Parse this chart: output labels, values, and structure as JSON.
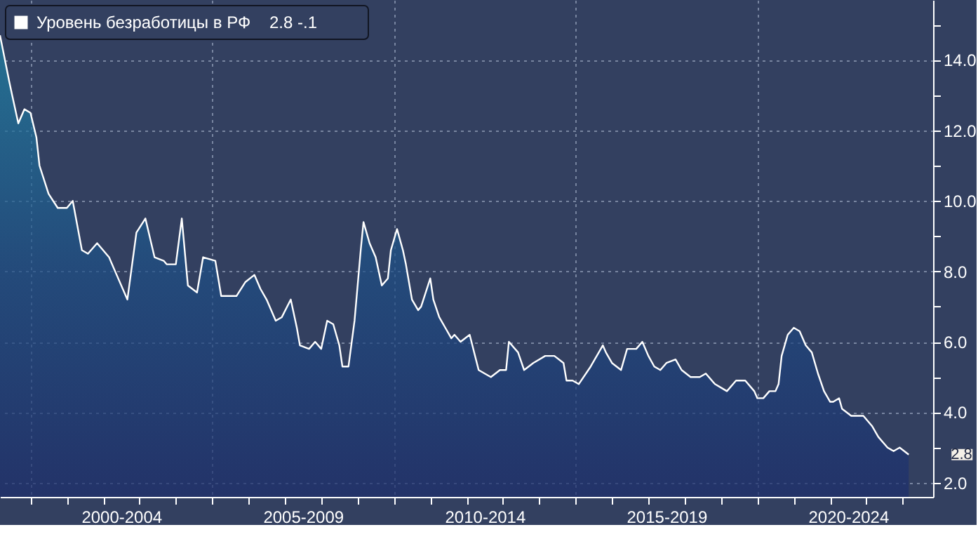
{
  "chart_data": {
    "type": "area",
    "x": [
      "1999-03",
      "1999-06",
      "1999-07",
      "1999-09",
      "1999-11",
      "2000-01",
      "2000-03",
      "2000-04",
      "2000-07",
      "2000-10",
      "2001-01",
      "2001-03",
      "2001-06",
      "2001-08",
      "2001-11",
      "2002-03",
      "2002-05",
      "2002-09",
      "2002-12",
      "2003-03",
      "2003-06",
      "2003-09",
      "2003-10",
      "2004-01",
      "2004-03",
      "2004-05",
      "2004-08",
      "2004-10",
      "2005-02",
      "2005-04",
      "2005-06",
      "2005-09",
      "2005-12",
      "2006-03",
      "2006-05",
      "2006-07",
      "2006-10",
      "2006-12",
      "2007-03",
      "2007-05",
      "2007-06",
      "2007-09",
      "2007-11",
      "2008-01",
      "2008-03",
      "2008-05",
      "2008-07",
      "2008-08",
      "2008-10",
      "2008-12",
      "2009-02",
      "2009-03",
      "2009-05",
      "2009-07",
      "2009-09",
      "2009-11",
      "2009-12",
      "2010-02",
      "2010-04",
      "2010-05",
      "2010-07",
      "2010-09",
      "2010-10",
      "2011-01",
      "2011-02",
      "2011-04",
      "2011-06",
      "2011-08",
      "2011-09",
      "2011-11",
      "2012-02",
      "2012-05",
      "2012-07",
      "2012-09",
      "2012-12",
      "2013-02",
      "2013-03",
      "2013-06",
      "2013-08",
      "2013-11",
      "2014-03",
      "2014-06",
      "2014-09",
      "2014-10",
      "2014-12",
      "2015-02",
      "2015-06",
      "2015-10",
      "2015-11",
      "2016-01",
      "2016-04",
      "2016-06",
      "2016-09",
      "2016-11",
      "2017-01",
      "2017-03",
      "2017-05",
      "2017-07",
      "2017-10",
      "2017-12",
      "2018-03",
      "2018-06",
      "2018-08",
      "2018-11",
      "2019-01",
      "2019-03",
      "2019-06",
      "2019-09",
      "2019-12",
      "2020-01",
      "2020-03",
      "2020-05",
      "2020-07",
      "2020-08",
      "2020-09",
      "2020-11",
      "2021-01",
      "2021-03",
      "2021-05",
      "2021-07",
      "2021-09",
      "2021-11",
      "2022-01",
      "2022-02",
      "2022-04",
      "2022-05",
      "2022-08",
      "2022-10",
      "2022-12",
      "2023-03",
      "2023-05",
      "2023-08",
      "2023-10",
      "2023-12",
      "2024-03"
    ],
    "series": [
      {
        "name": "Уровень безработицы в РФ",
        "color": "#ffffff",
        "values": [
          14.7,
          13.4,
          13.0,
          12.2,
          12.6,
          12.5,
          11.8,
          11.0,
          10.2,
          9.8,
          9.8,
          10.0,
          8.6,
          8.5,
          8.8,
          8.4,
          8.0,
          7.2,
          9.1,
          9.5,
          8.4,
          8.3,
          8.2,
          8.2,
          9.5,
          7.6,
          7.4,
          8.4,
          8.3,
          7.3,
          7.3,
          7.3,
          7.7,
          7.9,
          7.5,
          7.2,
          6.6,
          6.7,
          7.2,
          6.4,
          5.9,
          5.8,
          6.0,
          5.8,
          6.6,
          6.5,
          5.9,
          5.3,
          5.3,
          6.6,
          8.6,
          9.4,
          8.8,
          8.4,
          7.6,
          7.8,
          8.6,
          9.2,
          8.6,
          8.2,
          7.2,
          6.9,
          7.0,
          7.8,
          7.2,
          6.7,
          6.4,
          6.1,
          6.2,
          6.0,
          6.2,
          5.2,
          5.1,
          5.0,
          5.2,
          5.2,
          6.0,
          5.7,
          5.2,
          5.4,
          5.6,
          5.6,
          5.4,
          4.9,
          4.9,
          4.8,
          5.3,
          5.9,
          5.7,
          5.4,
          5.2,
          5.8,
          5.8,
          6.0,
          5.6,
          5.3,
          5.2,
          5.4,
          5.5,
          5.2,
          5.0,
          5.0,
          5.1,
          4.8,
          4.7,
          4.6,
          4.9,
          4.9,
          4.6,
          4.4,
          4.4,
          4.6,
          4.6,
          4.8,
          5.6,
          6.2,
          6.4,
          6.3,
          5.9,
          5.7,
          5.1,
          4.6,
          4.3,
          4.3,
          4.4,
          4.1,
          3.9,
          3.9,
          3.9,
          3.6,
          3.3,
          3.0,
          2.9,
          3.0,
          2.8
        ]
      }
    ],
    "xlim": [
      "1999-03",
      "2024-11"
    ],
    "xticks": [
      {
        "value": "2000-01",
        "label": null
      },
      {
        "value": "2001-01",
        "label": null
      },
      {
        "value": "2002-01",
        "label": null
      },
      {
        "value": "2003-01",
        "label": null
      },
      {
        "value": "2004-01",
        "label": null
      },
      {
        "value": "2005-01",
        "label": null
      },
      {
        "value": "2006-01",
        "label": null
      },
      {
        "value": "2007-01",
        "label": null
      },
      {
        "value": "2008-01",
        "label": null
      },
      {
        "value": "2009-01",
        "label": null
      },
      {
        "value": "2010-01",
        "label": null
      },
      {
        "value": "2011-01",
        "label": null
      },
      {
        "value": "2012-01",
        "label": null
      },
      {
        "value": "2013-01",
        "label": null
      },
      {
        "value": "2014-01",
        "label": null
      },
      {
        "value": "2015-01",
        "label": null
      },
      {
        "value": "2016-01",
        "label": null
      },
      {
        "value": "2017-01",
        "label": null
      },
      {
        "value": "2018-01",
        "label": null
      },
      {
        "value": "2019-01",
        "label": null
      },
      {
        "value": "2020-01",
        "label": null
      },
      {
        "value": "2021-01",
        "label": null
      },
      {
        "value": "2022-01",
        "label": null
      },
      {
        "value": "2023-01",
        "label": null
      },
      {
        "value": "2024-01",
        "label": null
      },
      {
        "value": "2002-07",
        "label": "2000-2004"
      },
      {
        "value": "2007-07",
        "label": "2005-2009"
      },
      {
        "value": "2012-07",
        "label": "2010-2014"
      },
      {
        "value": "2017-07",
        "label": "2015-2019"
      },
      {
        "value": "2022-07",
        "label": "2020-2024"
      }
    ],
    "ylim": [
      1.6,
      15.7
    ],
    "yticks": [
      {
        "value": 2,
        "label": "2.0"
      },
      {
        "value": 3,
        "label": null
      },
      {
        "value": 4,
        "label": "4.0"
      },
      {
        "value": 5,
        "label": null
      },
      {
        "value": 6,
        "label": "6.0"
      },
      {
        "value": 7,
        "label": null
      },
      {
        "value": 8,
        "label": "8.0"
      },
      {
        "value": 9,
        "label": null
      },
      {
        "value": 10,
        "label": "10.0"
      },
      {
        "value": 11,
        "label": null
      },
      {
        "value": 12,
        "label": "12.0"
      },
      {
        "value": 13,
        "label": null
      },
      {
        "value": 14,
        "label": "14.0"
      },
      {
        "value": 15,
        "label": null
      }
    ],
    "annotations": [
      "2.8   -.1",
      {
        "text": "2.8",
        "x": "2024-03",
        "y": 2.8
      }
    ],
    "grid": true,
    "legend": "top left"
  }
}
